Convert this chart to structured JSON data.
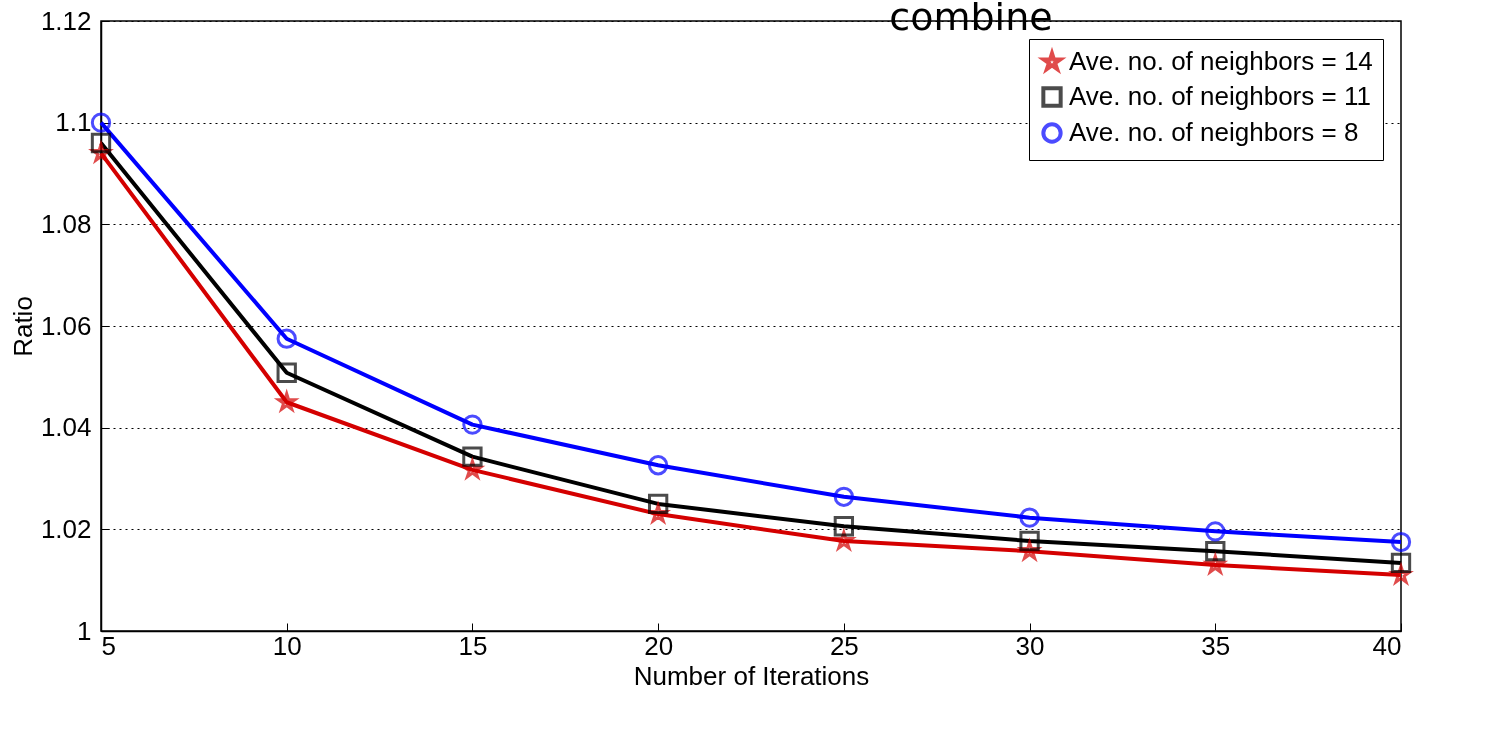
{
  "chart_data": {
    "type": "line",
    "title": "combine",
    "xlabel": "Number of Iterations",
    "ylabel": "Ratio",
    "x": [
      5,
      10,
      15,
      20,
      25,
      30,
      35,
      40
    ],
    "series": [
      {
        "name": "Ave. no. of neighbors = 14",
        "color": "#d40000",
        "marker": "star",
        "values": [
          1.094,
          1.045,
          1.0317,
          1.023,
          1.0177,
          1.0157,
          1.013,
          1.011
        ]
      },
      {
        "name": "Ave. no. of neighbors = 11",
        "color": "#000000",
        "marker": "square",
        "values": [
          1.096,
          1.0508,
          1.0343,
          1.025,
          1.0206,
          1.0177,
          1.0157,
          1.0134
        ]
      },
      {
        "name": "Ave. no. of neighbors = 8",
        "color": "#0000ff",
        "marker": "circle",
        "values": [
          1.1,
          1.0575,
          1.0406,
          1.0326,
          1.0264,
          1.0223,
          1.0196,
          1.0175
        ]
      }
    ],
    "xlim": [
      5,
      40
    ],
    "xticks": [
      5,
      10,
      15,
      20,
      25,
      30,
      35,
      40
    ],
    "ylim": [
      1,
      1.12
    ],
    "yticks": [
      1,
      1.02,
      1.04,
      1.06,
      1.08,
      1.1,
      1.12
    ],
    "grid": "y",
    "legend": "top right",
    "line_style": "solid"
  }
}
